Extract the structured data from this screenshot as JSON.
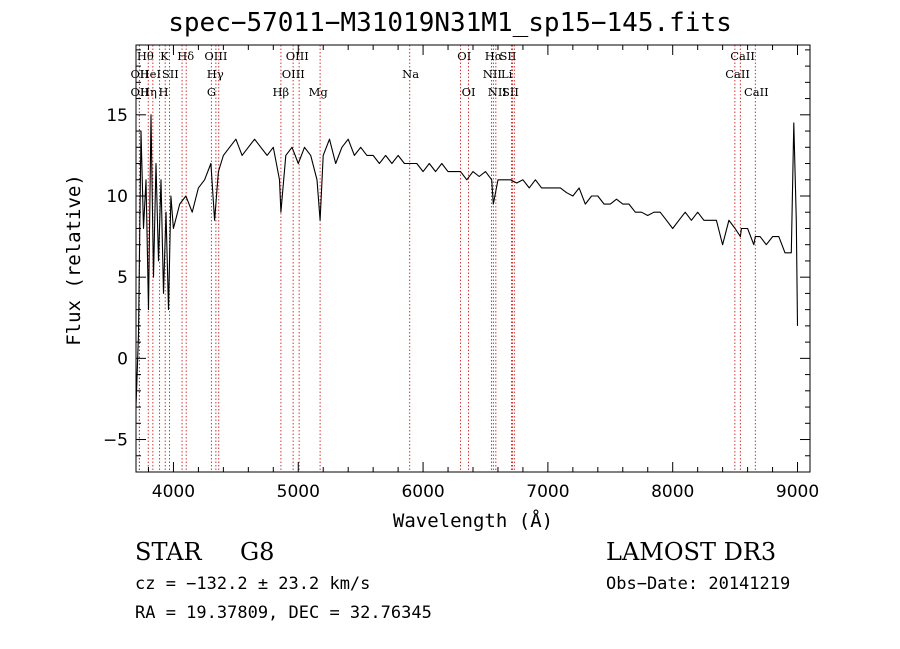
{
  "header": {
    "title": "spec−57011−M31019N31M1_sp15−145.fits"
  },
  "info": {
    "object_class": "STAR",
    "subclass": "G8",
    "survey": "LAMOST DR3",
    "cz": "cz = −132.2 ± 23.2 km/s",
    "obs_date": "Obs−Date: 20141219",
    "radec": "RA =  19.37809, DEC =  32.76345"
  },
  "chart_data": {
    "type": "line",
    "title": "spec−57011−M31019N31M1_sp15−145.fits",
    "xlabel": "Wavelength (Å)",
    "ylabel": "Flux (relative)",
    "xlim": [
      3700,
      9100
    ],
    "ylim": [
      -7,
      19.3
    ],
    "xticks": [
      4000,
      5000,
      6000,
      7000,
      8000,
      9000
    ],
    "xtick_labels": [
      "4000",
      "5000",
      "6000",
      "7000",
      "8000",
      "9000"
    ],
    "yticks": [
      -5,
      0,
      5,
      10,
      15
    ],
    "ytick_labels": [
      "−5",
      "0",
      "5",
      "10",
      "15"
    ],
    "grid": false,
    "line_color": "#000000",
    "marker_color": "#cc2222",
    "spectrum": {
      "name": "flux",
      "x": [
        3700,
        3720,
        3740,
        3760,
        3780,
        3800,
        3820,
        3840,
        3860,
        3880,
        3900,
        3920,
        3940,
        3960,
        3980,
        4000,
        4050,
        4100,
        4150,
        4200,
        4250,
        4300,
        4330,
        4360,
        4400,
        4450,
        4500,
        4550,
        4600,
        4650,
        4700,
        4750,
        4800,
        4850,
        4861,
        4900,
        4950,
        5000,
        5050,
        5100,
        5150,
        5175,
        5200,
        5250,
        5300,
        5350,
        5400,
        5450,
        5500,
        5550,
        5600,
        5650,
        5700,
        5750,
        5800,
        5850,
        5893,
        5950,
        6000,
        6050,
        6100,
        6150,
        6200,
        6250,
        6300,
        6350,
        6400,
        6450,
        6500,
        6550,
        6563,
        6600,
        6650,
        6700,
        6750,
        6800,
        6850,
        6900,
        6950,
        7000,
        7050,
        7100,
        7150,
        7200,
        7250,
        7300,
        7350,
        7400,
        7450,
        7500,
        7550,
        7600,
        7650,
        7700,
        7750,
        7800,
        7850,
        7900,
        7950,
        8000,
        8050,
        8100,
        8150,
        8200,
        8250,
        8300,
        8350,
        8400,
        8450,
        8500,
        8542,
        8550,
        8600,
        8650,
        8662,
        8700,
        8750,
        8800,
        8850,
        8900,
        8950,
        8970,
        8990,
        9000
      ],
      "y": [
        -3,
        1.5,
        14,
        8,
        11,
        3,
        15,
        5,
        12,
        6,
        11,
        4,
        9,
        3,
        10,
        8,
        9.5,
        10,
        9,
        10.5,
        11,
        12,
        8.5,
        11.5,
        12.5,
        13,
        13.5,
        12.5,
        13,
        13.5,
        13,
        12.5,
        13,
        11,
        9,
        12.5,
        13,
        12,
        13,
        12.5,
        11,
        8.5,
        12.5,
        13.5,
        12,
        13,
        13.5,
        12.5,
        13,
        12.5,
        12.5,
        12,
        12.5,
        12,
        12.5,
        12,
        12,
        12,
        11.5,
        12,
        11.5,
        12,
        11.5,
        11.5,
        11.5,
        11,
        11.5,
        11.2,
        11.5,
        11,
        9.5,
        11,
        11,
        11,
        10.8,
        11,
        10.5,
        11,
        10.5,
        10.5,
        10.5,
        10.5,
        10.2,
        10,
        10.5,
        9.5,
        10,
        10,
        9.5,
        9.5,
        9.8,
        9.5,
        9.5,
        9,
        9,
        8.8,
        9,
        9,
        8.5,
        8,
        8.5,
        9,
        8.5,
        9,
        8.5,
        8.5,
        8.5,
        7,
        8.5,
        8,
        7.5,
        8,
        8,
        7,
        7.5,
        7.5,
        7,
        7.5,
        7.5,
        6.5,
        6.5,
        14.5,
        8.5,
        2
      ]
    },
    "line_markers": [
      {
        "label": "Hθ",
        "x": 3798,
        "row": 0,
        "label_x": 3775
      },
      {
        "label": "K",
        "x": 3934,
        "row": 0,
        "label_x": 3928
      },
      {
        "label": "Hδ",
        "x": 4102,
        "row": 0,
        "label_x": 4098
      },
      {
        "label": "OIII",
        "x": 4363,
        "row": 0,
        "label_x": 4340
      },
      {
        "label": "OIII",
        "x": 4959,
        "row": 0,
        "label_x": 4992
      },
      {
        "label": "OI",
        "x": 6300,
        "row": 0,
        "label_x": 6330
      },
      {
        "label": "Hα",
        "x": 6563,
        "row": 0,
        "label_x": 6565
      },
      {
        "label": "SII",
        "x": 6716,
        "row": 0,
        "label_x": 6680
      },
      {
        "label": "CaII",
        "x": 8498,
        "row": 0,
        "label_x": 8560
      },
      {
        "label": "OII",
        "x": 3727,
        "row": 1,
        "label_x": 3730
      },
      {
        "label": "HeI",
        "x": 3889,
        "row": 1,
        "label_x": 3815
      },
      {
        "label": "SII",
        "x": 4069,
        "row": 1,
        "label_x": 3975
      },
      {
        "label": "Hγ",
        "x": 4340,
        "row": 1,
        "label_x": 4335
      },
      {
        "label": "OIII",
        "x": 5007,
        "row": 1,
        "label_x": 4960
      },
      {
        "label": "Na",
        "x": 5893,
        "row": 1,
        "label_x": 5900
      },
      {
        "label": "NII",
        "x": 6548,
        "row": 1,
        "label_x": 6555
      },
      {
        "label": "Li",
        "x": 6708,
        "row": 1,
        "label_x": 6670
      },
      {
        "label": "CaII",
        "x": 8542,
        "row": 1,
        "label_x": 8520
      },
      {
        "label": "OII",
        "x": 3727,
        "row": 2,
        "label_x": 3730
      },
      {
        "label": "Hη",
        "x": 3835,
        "row": 2,
        "label_x": 3800
      },
      {
        "label": "H",
        "x": 3968,
        "row": 2,
        "label_x": 3920
      },
      {
        "label": "G",
        "x": 4304,
        "row": 2,
        "label_x": 4305
      },
      {
        "label": "Hβ",
        "x": 4861,
        "row": 2,
        "label_x": 4860
      },
      {
        "label": "Mg",
        "x": 5175,
        "row": 2,
        "label_x": 5160
      },
      {
        "label": "OI",
        "x": 6364,
        "row": 2,
        "label_x": 6365
      },
      {
        "label": "NII",
        "x": 6583,
        "row": 2,
        "label_x": 6595
      },
      {
        "label": "SII",
        "x": 6731,
        "row": 2,
        "label_x": 6700
      },
      {
        "label": "CaII",
        "x": 8662,
        "row": 2,
        "label_x": 8670
      }
    ]
  }
}
